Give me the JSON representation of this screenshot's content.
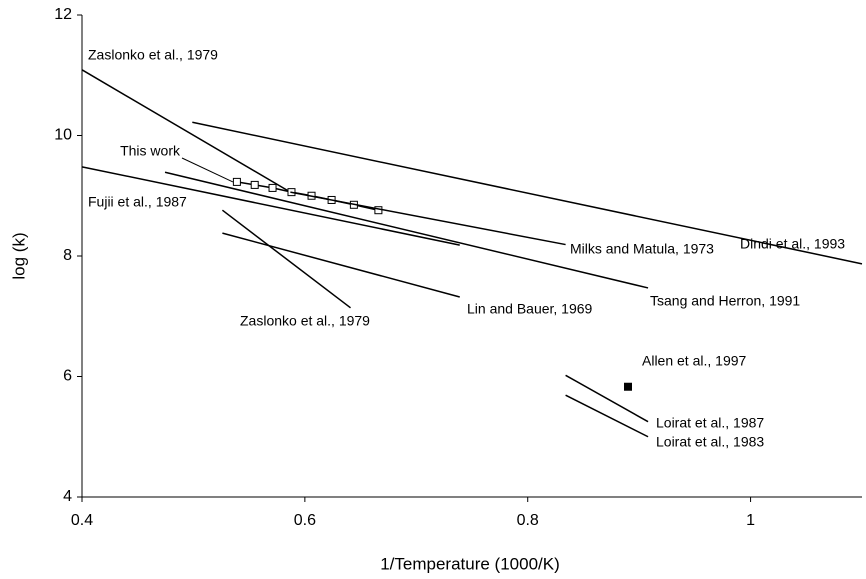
{
  "chart_data": {
    "type": "line",
    "x_label": "1/Temperature  (1000/K)",
    "y_label": "log (k)",
    "xlim": [
      0.4,
      1.1
    ],
    "ylim": [
      4,
      12
    ],
    "xticks": [
      0.4,
      0.6,
      0.8,
      1
    ],
    "yticks": [
      4,
      6,
      8,
      10,
      12
    ],
    "color": "#000000",
    "series": [
      {
        "name": "Zaslonko et al., 1979",
        "x": [
          0.4,
          0.587
        ],
        "values": [
          11.09,
          9.06
        ]
      },
      {
        "name": "This work",
        "marker": "square-open",
        "x": [
          0.539,
          0.555,
          0.571,
          0.588,
          0.606,
          0.624,
          0.644,
          0.666
        ],
        "values": [
          9.23,
          9.18,
          9.13,
          9.06,
          9.0,
          8.93,
          8.85,
          8.76
        ]
      },
      {
        "name": "Dindi et al., 1993",
        "x": [
          0.499,
          1.1
        ],
        "values": [
          10.22,
          7.87
        ]
      },
      {
        "name": "Milks and Matula, 1973",
        "x": [
          0.587,
          0.834
        ],
        "values": [
          9.06,
          8.19
        ]
      },
      {
        "name": "Tsang and Herron,  1991",
        "x": [
          0.4745,
          0.908
        ],
        "values": [
          9.39,
          7.47
        ]
      },
      {
        "name": "Fujii et al., 1987",
        "x": [
          0.4,
          0.739
        ],
        "values": [
          9.48,
          8.18
        ]
      },
      {
        "name": "Zaslonko et al., 1979",
        "x": [
          0.526,
          0.641
        ],
        "values": [
          8.76,
          7.14
        ]
      },
      {
        "name": "Lin and Bauer, 1969",
        "x": [
          0.526,
          0.739
        ],
        "values": [
          8.38,
          7.32
        ]
      },
      {
        "name": "Allen et al., 1997",
        "marker": "square",
        "x": [
          0.89
        ],
        "values": [
          5.83
        ]
      },
      {
        "name": "Loirat et al., 1987",
        "x": [
          0.834,
          0.908
        ],
        "values": [
          6.02,
          5.25
        ]
      },
      {
        "name": "Loirat et al., 1983",
        "x": [
          0.834,
          0.908
        ],
        "values": [
          5.69,
          5.0
        ]
      }
    ]
  }
}
